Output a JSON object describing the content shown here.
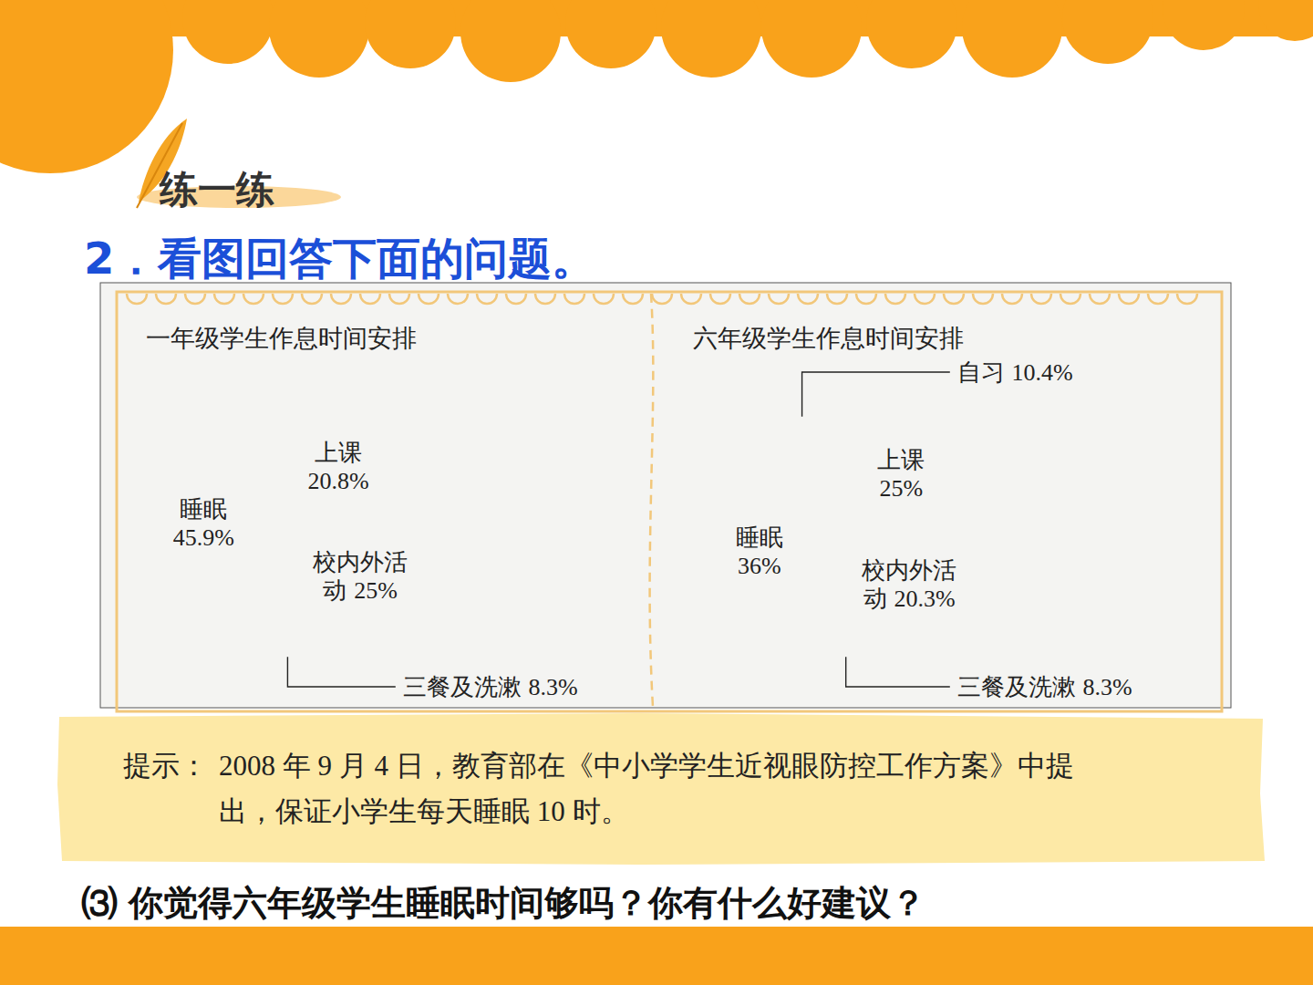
{
  "page": {
    "section": "练一练",
    "question": "2．看图回答下面的问题。",
    "hint_label": "提示：",
    "hint_lines": [
      "2008 年 9 月 4 日，教育部在《中小学学生近视眼防控工作方案》中提",
      "出，保证小学生每天睡眠 10 时。"
    ],
    "sub_question": "⑶ 你觉得六年级学生睡眠时间够吗？你有什么好建议？"
  },
  "chart_data": [
    {
      "type": "pie",
      "title": "一年级学生作息时间安排",
      "categories": [
        "上课",
        "校内外活动",
        "三餐及洗漱",
        "睡眠"
      ],
      "values": [
        20.8,
        25,
        8.3,
        45.9
      ],
      "value_labels": [
        "20.8%",
        "25%",
        "8.3%",
        "45.9%"
      ],
      "data_labels": true,
      "color": "#1f66b8"
    },
    {
      "type": "pie",
      "title": "六年级学生作息时间安排",
      "categories": [
        "上课",
        "校内外活动",
        "三餐及洗漱",
        "睡眠",
        "自习"
      ],
      "values": [
        25,
        20.3,
        8.3,
        36,
        10.4
      ],
      "value_labels": [
        "25%",
        "20.3%",
        "8.3%",
        "36%",
        "10.4%"
      ],
      "data_labels": true,
      "color": "#1f66b8"
    }
  ]
}
